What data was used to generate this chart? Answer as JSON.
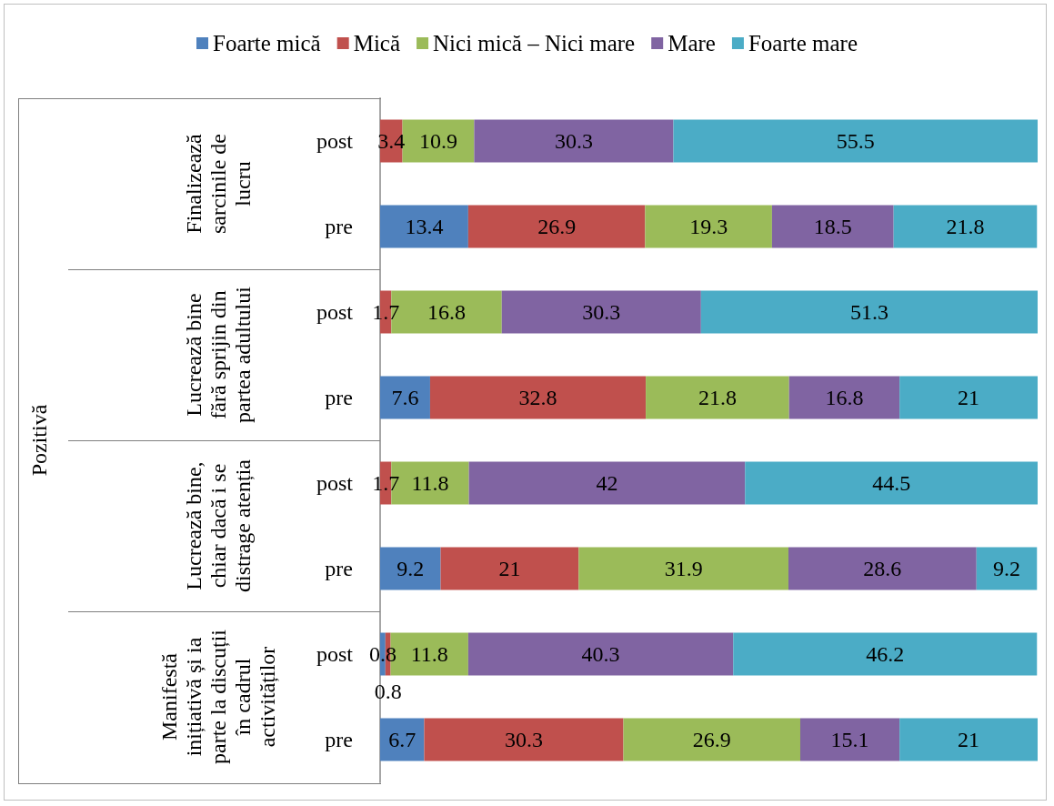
{
  "chart_data": {
    "type": "bar",
    "orientation": "horizontal",
    "stacked": true,
    "annotations": [
      "Pozitivă",
      "Finalizează sarcinile de lucru",
      "Lucrează bine fără sprijin din partea adultului",
      "Lucrează bine, chiar dacă i se distrage atenția",
      "Manifestă inițiativă și ia parte la discuții în cadrul activităților"
    ],
    "categories": [
      "post",
      "pre",
      "post",
      "pre",
      "post",
      "pre",
      "post",
      "pre"
    ],
    "series": [
      {
        "name": "Foarte mică",
        "color": "#4f81bd",
        "values": [
          null,
          13.4,
          null,
          7.6,
          null,
          9.2,
          0.8,
          6.7
        ]
      },
      {
        "name": "Mică",
        "color": "#c0504d",
        "values": [
          3.4,
          26.9,
          1.7,
          32.8,
          1.7,
          21,
          0.8,
          30.3
        ]
      },
      {
        "name": "Nici mică – Nici mare",
        "color": "#9bbb59",
        "values": [
          10.9,
          19.3,
          16.8,
          21.8,
          11.8,
          31.9,
          11.8,
          26.9
        ]
      },
      {
        "name": "Mare",
        "color": "#8064a2",
        "values": [
          30.3,
          18.5,
          30.3,
          16.8,
          42,
          28.6,
          40.3,
          15.1
        ]
      },
      {
        "name": "Foarte mare",
        "color": "#4bacc6",
        "values": [
          55.5,
          21.8,
          51.3,
          21,
          44.5,
          9.2,
          46.2,
          21
        ]
      }
    ],
    "xlim": [
      0,
      100
    ],
    "data_labels": true,
    "legend": "top",
    "tick_labels": "y"
  }
}
